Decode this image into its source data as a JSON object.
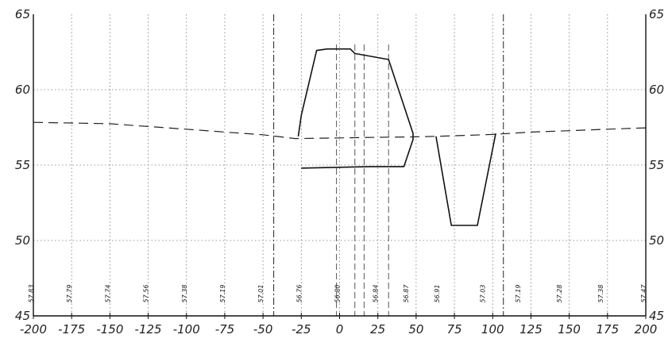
{
  "chart_data": {
    "type": "line",
    "title": "",
    "xlabel": "",
    "ylabel": "",
    "xlim": [
      -200,
      200
    ],
    "ylim": [
      45,
      65
    ],
    "x_ticks": [
      "-200",
      "-175",
      "-150",
      "-125",
      "-100",
      "-75",
      "-50",
      "-25",
      "0",
      "25",
      "50",
      "75",
      "100",
      "125",
      "150",
      "175",
      "200"
    ],
    "y_ticks_left": [
      "65",
      "60",
      "55",
      "50",
      "45"
    ],
    "y_ticks_right": [
      "65",
      "60",
      "55",
      "50",
      "45"
    ],
    "grid": true,
    "ground_elevation_labels": [
      {
        "x": -200,
        "text": "57.83"
      },
      {
        "x": -175,
        "text": "57.79"
      },
      {
        "x": -150,
        "text": "57.74"
      },
      {
        "x": -125,
        "text": "57.56"
      },
      {
        "x": -100,
        "text": "57.38"
      },
      {
        "x": -75,
        "text": "57.19"
      },
      {
        "x": -50,
        "text": "57.01"
      },
      {
        "x": -25,
        "text": "56.76"
      },
      {
        "x": 0,
        "text": "56.80"
      },
      {
        "x": 25,
        "text": "56.84"
      },
      {
        "x": 45,
        "text": "56.87"
      },
      {
        "x": 65,
        "text": "56.91"
      },
      {
        "x": 95,
        "text": "57.03"
      },
      {
        "x": 118,
        "text": "57.19"
      },
      {
        "x": 145,
        "text": "57.28"
      },
      {
        "x": 172,
        "text": "57.38"
      },
      {
        "x": 200,
        "text": "57.47"
      }
    ],
    "series": [
      {
        "style": "dashed",
        "x": [
          -200,
          -175,
          -150,
          -125,
          -100,
          -75,
          -50,
          -29,
          0,
          25,
          48,
          65,
          100,
          125,
          150,
          175,
          200
        ],
        "y": [
          57.83,
          57.79,
          57.74,
          57.56,
          57.38,
          57.19,
          57.01,
          56.76,
          56.8,
          56.84,
          56.87,
          56.91,
          57.03,
          57.19,
          57.28,
          57.38,
          57.47
        ]
      },
      {
        "style": "solid",
        "x": [
          -27,
          -25,
          -15,
          -8,
          7,
          10,
          32,
          48,
          48,
          42,
          20,
          -25
        ],
        "y": [
          56.9,
          58.3,
          62.6,
          62.7,
          62.7,
          62.4,
          62.0,
          57.1,
          56.7,
          54.9,
          54.9,
          54.8
        ]
      },
      {
        "style": "solid",
        "x": [
          63,
          73,
          90,
          102
        ],
        "y": [
          56.9,
          51.0,
          51.0,
          57.1
        ]
      }
    ],
    "reference_lines_x": [
      -43,
      107
    ],
    "center_lines_x": [
      -2,
      10,
      16,
      32
    ]
  }
}
